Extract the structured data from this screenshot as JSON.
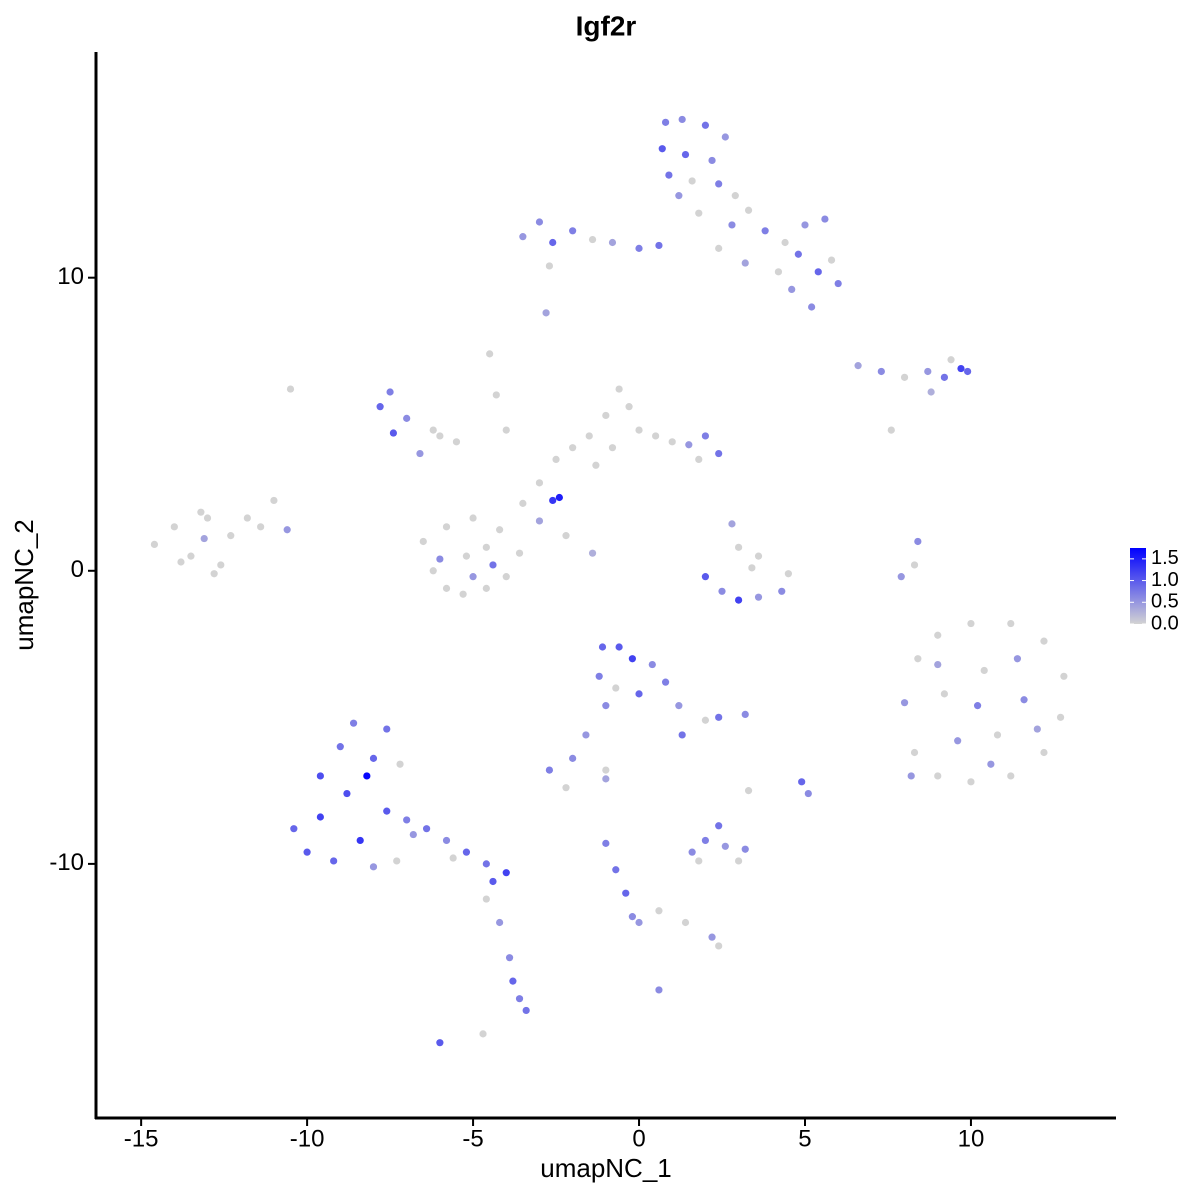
{
  "chart_data": {
    "type": "scatter",
    "title": "Igf2r",
    "x_label": "umapNC_1",
    "y_label": "umapNC_2",
    "xlim": [
      -16.36,
      14.37
    ],
    "ylim": [
      -18.67,
      17.7
    ],
    "xticks": [
      -15,
      -10,
      -5,
      0,
      5,
      10
    ],
    "yticks": [
      -10,
      0,
      10
    ],
    "color_low": "#d3d3d3",
    "color_high": "#0000ff",
    "colorbar": {
      "lim": [
        0,
        1.75
      ],
      "ticks": [
        {
          "value": 0,
          "label": "0.0"
        },
        0.5,
        {
          "value": 1,
          "label": "1.0"
        },
        1.5
      ]
    },
    "x": [
      -14.6,
      -14.0,
      -13.5,
      -13.0,
      -12.6,
      -12.3,
      -13.2,
      -11.8,
      -11.0,
      -12.8,
      -13.8,
      -11.4,
      -13.1,
      -10.6,
      -6.5,
      -6.2,
      -5.8,
      -5.3,
      -4.6,
      -4.0,
      -3.6,
      -4.2,
      -5.0,
      -5.8,
      -5.2,
      -4.6,
      -6.0,
      -4.4,
      -5.0,
      -3.5,
      -3.0,
      -2.5,
      -2.0,
      -1.5,
      -1.0,
      -0.6,
      -0.3,
      0.0,
      -0.8,
      -1.3,
      0.5,
      1.0,
      1.5,
      2.0,
      2.4,
      1.8,
      -2.6,
      -2.4,
      -3.0,
      -2.2,
      -1.4,
      -4.5,
      -4.3,
      -4.0,
      -5.5,
      -6.0,
      -7.8,
      -7.5,
      -7.0,
      -7.4,
      -6.6,
      -6.2,
      -10.5,
      0.8,
      1.3,
      2.0,
      2.6,
      0.7,
      1.4,
      2.2,
      0.9,
      1.6,
      2.4,
      2.9,
      1.2,
      1.8,
      2.8,
      3.3,
      3.8,
      4.4,
      5.0,
      5.6,
      4.8,
      5.4,
      6.0,
      4.6,
      5.2,
      5.8,
      4.2,
      3.2,
      2.4,
      -3.5,
      -3.0,
      -2.6,
      -2.0,
      -1.4,
      -0.8,
      0.0,
      0.6,
      -2.7,
      -2.8,
      6.6,
      7.3,
      8.0,
      8.7,
      9.2,
      9.7,
      9.9,
      9.4,
      8.8,
      7.6,
      2.0,
      2.5,
      3.0,
      3.6,
      4.3,
      4.5,
      3.4,
      3.0,
      2.8,
      3.6,
      8.4,
      7.9,
      8.3,
      8.0,
      8.4,
      9.0,
      10.0,
      11.2,
      12.2,
      12.8,
      12.7,
      12.2,
      11.2,
      10.0,
      9.0,
      8.3,
      9.2,
      10.4,
      11.6,
      10.8,
      9.6,
      10.2,
      11.4,
      9.0,
      12.0,
      10.6,
      8.2,
      -10.4,
      -10.0,
      -9.6,
      -9.2,
      -8.8,
      -8.4,
      -8.0,
      -7.6,
      -9.0,
      -8.6,
      -7.6,
      -7.2,
      -7.3,
      -8.0,
      -9.6,
      -7.0,
      -6.4,
      -5.8,
      -5.2,
      -4.6,
      -4.0,
      -4.4,
      -5.6,
      -6.8,
      -8.2,
      -4.6,
      -4.2,
      -3.9,
      -3.8,
      -3.6,
      -3.4,
      -6.0,
      -4.7,
      -1.1,
      -0.6,
      -0.2,
      0.4,
      0.8,
      1.2,
      1.3,
      -1.2,
      -0.7,
      0.0,
      -1.0,
      -1.6,
      -2.0,
      -2.7,
      -2.2,
      -1.0,
      -1.0,
      2.4,
      3.2,
      2.0,
      4.9,
      5.1,
      3.3,
      1.6,
      2.0,
      2.6,
      3.2,
      2.4,
      1.8,
      3.0,
      -1.0,
      -0.7,
      -0.4,
      -0.2,
      0.0,
      0.6,
      1.4,
      2.2,
      2.4,
      0.6
    ],
    "y": [
      0.9,
      1.5,
      0.5,
      1.8,
      0.2,
      1.2,
      2.0,
      1.8,
      2.4,
      -0.1,
      0.3,
      1.5,
      1.1,
      1.4,
      1.0,
      0.0,
      -0.6,
      -0.8,
      -0.6,
      -0.2,
      0.6,
      1.4,
      1.8,
      1.5,
      0.5,
      0.8,
      0.4,
      0.2,
      -0.2,
      2.3,
      3.0,
      3.8,
      4.2,
      4.6,
      5.3,
      6.2,
      5.6,
      4.8,
      4.2,
      3.6,
      4.6,
      4.4,
      4.3,
      4.6,
      4.0,
      3.8,
      2.4,
      2.5,
      1.7,
      1.2,
      0.6,
      7.4,
      6.0,
      4.8,
      4.4,
      4.6,
      5.6,
      6.1,
      5.2,
      4.7,
      4.0,
      4.8,
      6.2,
      15.3,
      15.4,
      15.2,
      14.8,
      14.4,
      14.2,
      14.0,
      13.5,
      13.3,
      13.2,
      12.8,
      12.8,
      12.2,
      11.8,
      12.3,
      11.6,
      11.2,
      11.8,
      12.0,
      10.8,
      10.2,
      9.8,
      9.6,
      9.0,
      10.6,
      10.2,
      10.5,
      11.0,
      11.4,
      11.9,
      11.2,
      11.6,
      11.3,
      11.2,
      11.0,
      11.1,
      10.4,
      8.8,
      7.0,
      6.8,
      6.6,
      6.8,
      6.6,
      6.9,
      6.8,
      7.2,
      6.1,
      4.8,
      -0.2,
      -0.7,
      -1.0,
      -0.9,
      -0.7,
      -0.1,
      0.1,
      0.8,
      1.6,
      0.5,
      1.0,
      -0.2,
      0.2,
      -4.5,
      -3.0,
      -2.2,
      -1.8,
      -1.8,
      -2.4,
      -3.6,
      -5.0,
      -6.2,
      -7.0,
      -7.2,
      -7.0,
      -6.2,
      -4.2,
      -3.4,
      -4.4,
      -5.6,
      -5.8,
      -4.6,
      -3.0,
      -3.2,
      -5.4,
      -6.6,
      -7.0,
      -8.8,
      -9.6,
      -8.4,
      -9.9,
      -7.6,
      -9.2,
      -6.4,
      -8.2,
      -6.0,
      -5.2,
      -5.4,
      -6.6,
      -9.9,
      -10.1,
      -7.0,
      -8.5,
      -8.8,
      -9.2,
      -9.6,
      -10.0,
      -10.3,
      -10.6,
      -9.8,
      -9.0,
      -7.0,
      -11.2,
      -12.0,
      -13.2,
      -14.0,
      -14.6,
      -15.0,
      -16.1,
      -15.8,
      -2.6,
      -2.6,
      -3.0,
      -3.2,
      -3.8,
      -4.6,
      -5.6,
      -3.6,
      -4.0,
      -4.2,
      -4.6,
      -5.6,
      -6.4,
      -6.8,
      -7.4,
      -6.8,
      -7.1,
      -5.0,
      -4.9,
      -5.1,
      -7.2,
      -7.6,
      -7.5,
      -9.6,
      -9.2,
      -9.4,
      -9.5,
      -8.7,
      -9.9,
      -9.9,
      -9.3,
      -10.2,
      -11.0,
      -11.8,
      -12.0,
      -11.6,
      -12.0,
      -12.5,
      -12.8,
      -14.3
    ],
    "values": [
      0,
      0,
      0,
      0,
      0,
      0,
      0,
      0,
      0,
      0,
      0,
      0,
      0.4,
      0.5,
      0,
      0,
      0,
      0,
      0,
      0,
      0,
      0,
      0,
      0,
      0,
      0,
      0.6,
      0.8,
      0.5,
      0,
      0,
      0,
      0,
      0,
      0,
      0,
      0,
      0,
      0,
      0,
      0,
      0,
      0.5,
      0.7,
      0.8,
      0,
      1.3,
      1.5,
      0.4,
      0,
      0.3,
      0,
      0,
      0,
      0,
      0,
      0.9,
      0.7,
      0.6,
      1.0,
      0.5,
      0,
      0,
      0.7,
      0.6,
      0.8,
      0.5,
      1.0,
      0.9,
      0.6,
      0.8,
      0,
      0.7,
      0,
      0.5,
      0,
      0.6,
      0,
      0.7,
      0,
      0.5,
      0.6,
      0.8,
      0.9,
      0.7,
      0.5,
      0.6,
      0,
      0,
      0.4,
      0,
      0.5,
      0.6,
      0.9,
      0.7,
      0,
      0.4,
      0.7,
      0.8,
      0,
      0.4,
      0.4,
      0.6,
      0,
      0.5,
      0.8,
      1.2,
      0.9,
      0,
      0.3,
      0,
      1.0,
      0.6,
      1.2,
      0.5,
      0.6,
      0,
      0,
      0,
      0.4,
      0,
      0.6,
      0.5,
      0,
      0.5,
      0,
      0,
      0,
      0,
      0,
      0,
      0,
      0,
      0,
      0,
      0,
      0,
      0,
      0,
      0.6,
      0,
      0.5,
      0.7,
      0.5,
      0.4,
      0.4,
      0.5,
      0.5,
      0.9,
      1.0,
      1.2,
      0.9,
      1.1,
      1.3,
      0.9,
      1.0,
      0.8,
      0.7,
      0.8,
      0,
      0,
      0.5,
      1.1,
      0.7,
      0.8,
      0.6,
      0.9,
      0.8,
      1.2,
      1.0,
      0,
      0.5,
      1.7,
      0,
      0.5,
      0.6,
      0.9,
      0.7,
      0.8,
      1.0,
      0,
      0.9,
      1.0,
      1.2,
      0.6,
      0.7,
      0.5,
      0.8,
      0.7,
      0,
      0.9,
      0.6,
      0.5,
      0.6,
      0.7,
      0,
      0,
      0.4,
      0.8,
      0.6,
      0,
      0.9,
      0.6,
      0,
      0.6,
      0.7,
      0.5,
      0.6,
      0.8,
      0,
      0,
      0.7,
      0.8,
      0.9,
      0.6,
      0.5,
      0,
      0,
      0.5,
      0,
      0.6
    ]
  }
}
